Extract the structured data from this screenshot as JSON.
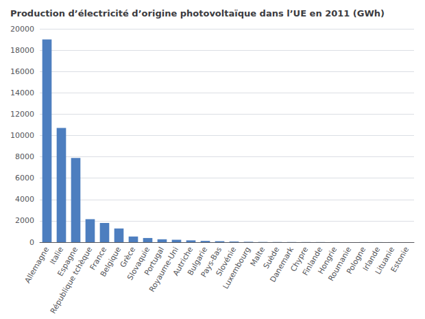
{
  "chart_data": {
    "type": "bar",
    "title": "Production d’électricité d’origine photovoltaïque dans l’UE en 2011 (GWh)",
    "categories": [
      "Allemagne",
      "Italie",
      "Espagne",
      "République tchèque",
      "France",
      "Belgique",
      "Grèce",
      "Slovaquie",
      "Portugal",
      "Royaume-Uni",
      "Autriche",
      "Bulgarie",
      "Pays-Bas",
      "Slovénie",
      "Luxembourg",
      "Malte",
      "Suède",
      "Danemark",
      "Chypre",
      "Finlande",
      "Hongrie",
      "Roumanie",
      "Pologne",
      "Irlande",
      "Lituanie",
      "Estonie"
    ],
    "values": [
      19000,
      10700,
      7900,
      2150,
      1800,
      1280,
      530,
      390,
      270,
      230,
      170,
      120,
      90,
      60,
      35,
      20,
      15,
      12,
      10,
      8,
      7,
      6,
      5,
      4,
      3,
      2
    ],
    "color": "#4d7ebf",
    "ylim": [
      0,
      20000
    ],
    "yticks": [
      0,
      2000,
      4000,
      6000,
      8000,
      10000,
      12000,
      14000,
      16000,
      18000,
      20000
    ],
    "grid": true
  }
}
